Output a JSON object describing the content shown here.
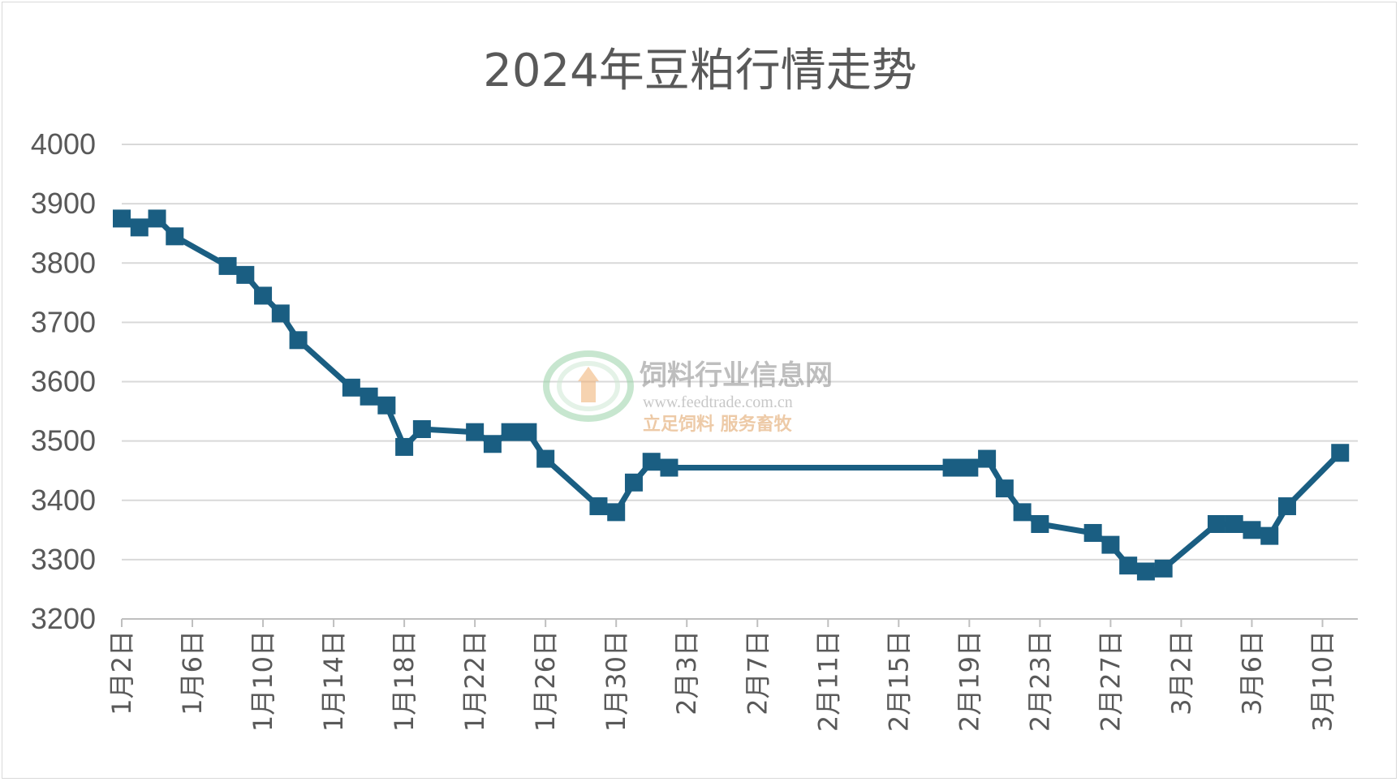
{
  "chart_data": {
    "type": "line",
    "title": "2024年豆粕行情走势",
    "xlabel": "",
    "ylabel": "",
    "ylim": [
      3200,
      4000
    ],
    "yticks": [
      3200,
      3300,
      3400,
      3500,
      3600,
      3700,
      3800,
      3900,
      4000
    ],
    "xrange": [
      "2024-01-02",
      "2024-03-12"
    ],
    "xtick_labels": [
      "1月2日",
      "1月6日",
      "1月10日",
      "1月14日",
      "1月18日",
      "1月22日",
      "1月26日",
      "1月30日",
      "2月3日",
      "2月7日",
      "2月11日",
      "2月15日",
      "2月19日",
      "2月23日",
      "2月27日",
      "3月2日",
      "3月6日",
      "3月10日"
    ],
    "grid": "horizontal",
    "legend": "none",
    "color": "#1a5e82",
    "series": [
      {
        "name": "",
        "points": [
          [
            "2024-01-02",
            3875
          ],
          [
            "2024-01-03",
            3860
          ],
          [
            "2024-01-04",
            3875
          ],
          [
            "2024-01-05",
            3845
          ],
          [
            "2024-01-08",
            3795
          ],
          [
            "2024-01-09",
            3780
          ],
          [
            "2024-01-10",
            3745
          ],
          [
            "2024-01-11",
            3715
          ],
          [
            "2024-01-12",
            3670
          ],
          [
            "2024-01-15",
            3590
          ],
          [
            "2024-01-16",
            3575
          ],
          [
            "2024-01-17",
            3560
          ],
          [
            "2024-01-18",
            3490
          ],
          [
            "2024-01-19",
            3520
          ],
          [
            "2024-01-22",
            3515
          ],
          [
            "2024-01-23",
            3495
          ],
          [
            "2024-01-24",
            3515
          ],
          [
            "2024-01-25",
            3515
          ],
          [
            "2024-01-26",
            3470
          ],
          [
            "2024-01-29",
            3390
          ],
          [
            "2024-01-30",
            3380
          ],
          [
            "2024-01-31",
            3430
          ],
          [
            "2024-02-01",
            3465
          ],
          [
            "2024-02-02",
            3455
          ],
          [
            "2024-02-18",
            3455
          ],
          [
            "2024-02-19",
            3455
          ],
          [
            "2024-02-20",
            3470
          ],
          [
            "2024-02-21",
            3420
          ],
          [
            "2024-02-22",
            3380
          ],
          [
            "2024-02-23",
            3360
          ],
          [
            "2024-02-26",
            3345
          ],
          [
            "2024-02-27",
            3325
          ],
          [
            "2024-02-28",
            3290
          ],
          [
            "2024-02-29",
            3280
          ],
          [
            "2024-03-01",
            3285
          ],
          [
            "2024-03-04",
            3360
          ],
          [
            "2024-03-05",
            3360
          ],
          [
            "2024-03-06",
            3350
          ],
          [
            "2024-03-07",
            3340
          ],
          [
            "2024-03-08",
            3390
          ],
          [
            "2024-03-11",
            3480
          ]
        ]
      }
    ]
  },
  "watermark": {
    "title": "饲料行业信息网",
    "url": "www.feedtrade.com.cn",
    "slogan": "立足饲料  服务畜牧"
  }
}
